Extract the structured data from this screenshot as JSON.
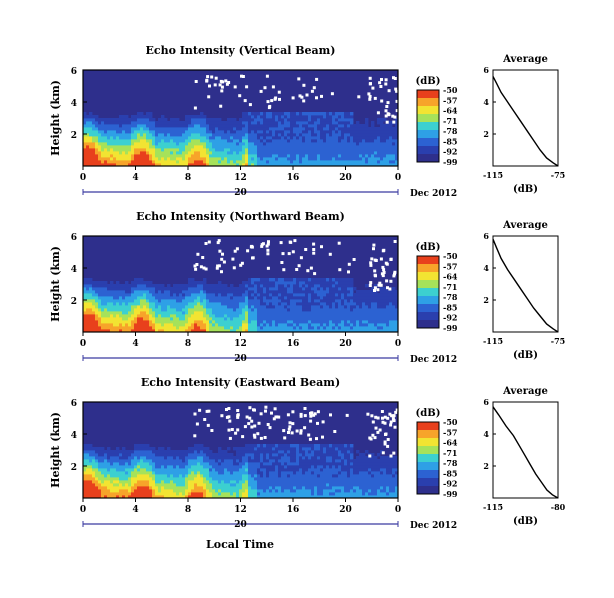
{
  "figure": {
    "xlabel": "Local Time",
    "date_label": "Dec 2012",
    "colors": {
      "background": "#ffffff",
      "frame": "#000000",
      "date_bar": "#3a3aa0"
    }
  },
  "colorbar": {
    "unit": "(dB)",
    "ticks": [
      "-50",
      "-57",
      "-64",
      "-71",
      "-78",
      "-85",
      "-92",
      "-99"
    ],
    "colors": [
      "#e8401c",
      "#f7a42a",
      "#f2e432",
      "#a6e25a",
      "#3cd0d0",
      "#2ea0e6",
      "#2c62d2",
      "#2a3fae",
      "#2e2f8c"
    ]
  },
  "chart_data": [
    {
      "type": "heatmap",
      "title": "Echo Intensity (Vertical Beam)",
      "ylabel": "Height (km)",
      "xlim": [
        0,
        24
      ],
      "x_ticks": [
        "0",
        "4",
        "8",
        "12",
        "16",
        "20",
        "0"
      ],
      "day_tick": "20",
      "ylim": [
        0,
        6
      ],
      "y_ticks": [
        "2",
        "4",
        "6"
      ],
      "colorbar_range_db": [
        -99,
        -50
      ],
      "pattern": "high intensity near surface decaying with height; missing data patches above ~4 km"
    },
    {
      "type": "line",
      "title": "Average",
      "xlabel": "(dB)",
      "x_ticks": [
        "-115",
        "-75"
      ],
      "xlim": [
        -115,
        -75
      ],
      "ylim": [
        0,
        6
      ],
      "y_ticks": [
        "2",
        "4",
        "6"
      ],
      "series": [
        {
          "x": [
            -75,
            -78,
            -82,
            -86,
            -90,
            -94,
            -98,
            -102,
            -106,
            -110,
            -113,
            -115
          ],
          "y": [
            0,
            0.2,
            0.5,
            1.0,
            1.6,
            2.2,
            2.8,
            3.4,
            4.0,
            4.6,
            5.2,
            5.6
          ]
        }
      ]
    },
    {
      "type": "heatmap",
      "title": "Echo Intensity (Northward Beam)",
      "ylabel": "Height (km)",
      "xlim": [
        0,
        24
      ],
      "x_ticks": [
        "0",
        "4",
        "8",
        "12",
        "16",
        "20",
        "0"
      ],
      "day_tick": "20",
      "ylim": [
        0,
        6
      ],
      "y_ticks": [
        "2",
        "4",
        "6"
      ],
      "colorbar_range_db": [
        -99,
        -50
      ],
      "pattern": "high intensity near surface decaying with height; missing data patches aloft"
    },
    {
      "type": "line",
      "title": "Average",
      "xlabel": "(dB)",
      "x_ticks": [
        "-115",
        "-75"
      ],
      "xlim": [
        -115,
        -75
      ],
      "ylim": [
        0,
        6
      ],
      "y_ticks": [
        "2",
        "4",
        "6"
      ],
      "series": [
        {
          "x": [
            -75,
            -78,
            -82,
            -86,
            -90,
            -94,
            -98,
            -102,
            -106,
            -110,
            -113,
            -115
          ],
          "y": [
            0,
            0.2,
            0.5,
            1.0,
            1.5,
            2.1,
            2.7,
            3.3,
            3.9,
            4.6,
            5.3,
            5.8
          ]
        }
      ]
    },
    {
      "type": "heatmap",
      "title": "Echo Intensity (Eastward Beam)",
      "ylabel": "Height (km)",
      "xlim": [
        0,
        24
      ],
      "x_ticks": [
        "0",
        "4",
        "8",
        "12",
        "16",
        "20",
        "0"
      ],
      "day_tick": "20",
      "ylim": [
        0,
        6
      ],
      "y_ticks": [
        "2",
        "4",
        "6"
      ],
      "colorbar_range_db": [
        -99,
        -50
      ],
      "pattern": "high intensity near surface decaying with height; missing data patches aloft"
    },
    {
      "type": "line",
      "title": "Average",
      "xlabel": "(dB)",
      "x_ticks": [
        "-115",
        "-80"
      ],
      "xlim": [
        -115,
        -80
      ],
      "ylim": [
        0,
        6
      ],
      "y_ticks": [
        "2",
        "4",
        "6"
      ],
      "series": [
        {
          "x": [
            -80,
            -83,
            -86,
            -89,
            -92,
            -95,
            -98,
            -101,
            -104,
            -108,
            -112,
            -115
          ],
          "y": [
            0,
            0.2,
            0.5,
            1.0,
            1.5,
            2.1,
            2.7,
            3.3,
            3.9,
            4.5,
            5.2,
            5.7
          ]
        }
      ]
    }
  ]
}
